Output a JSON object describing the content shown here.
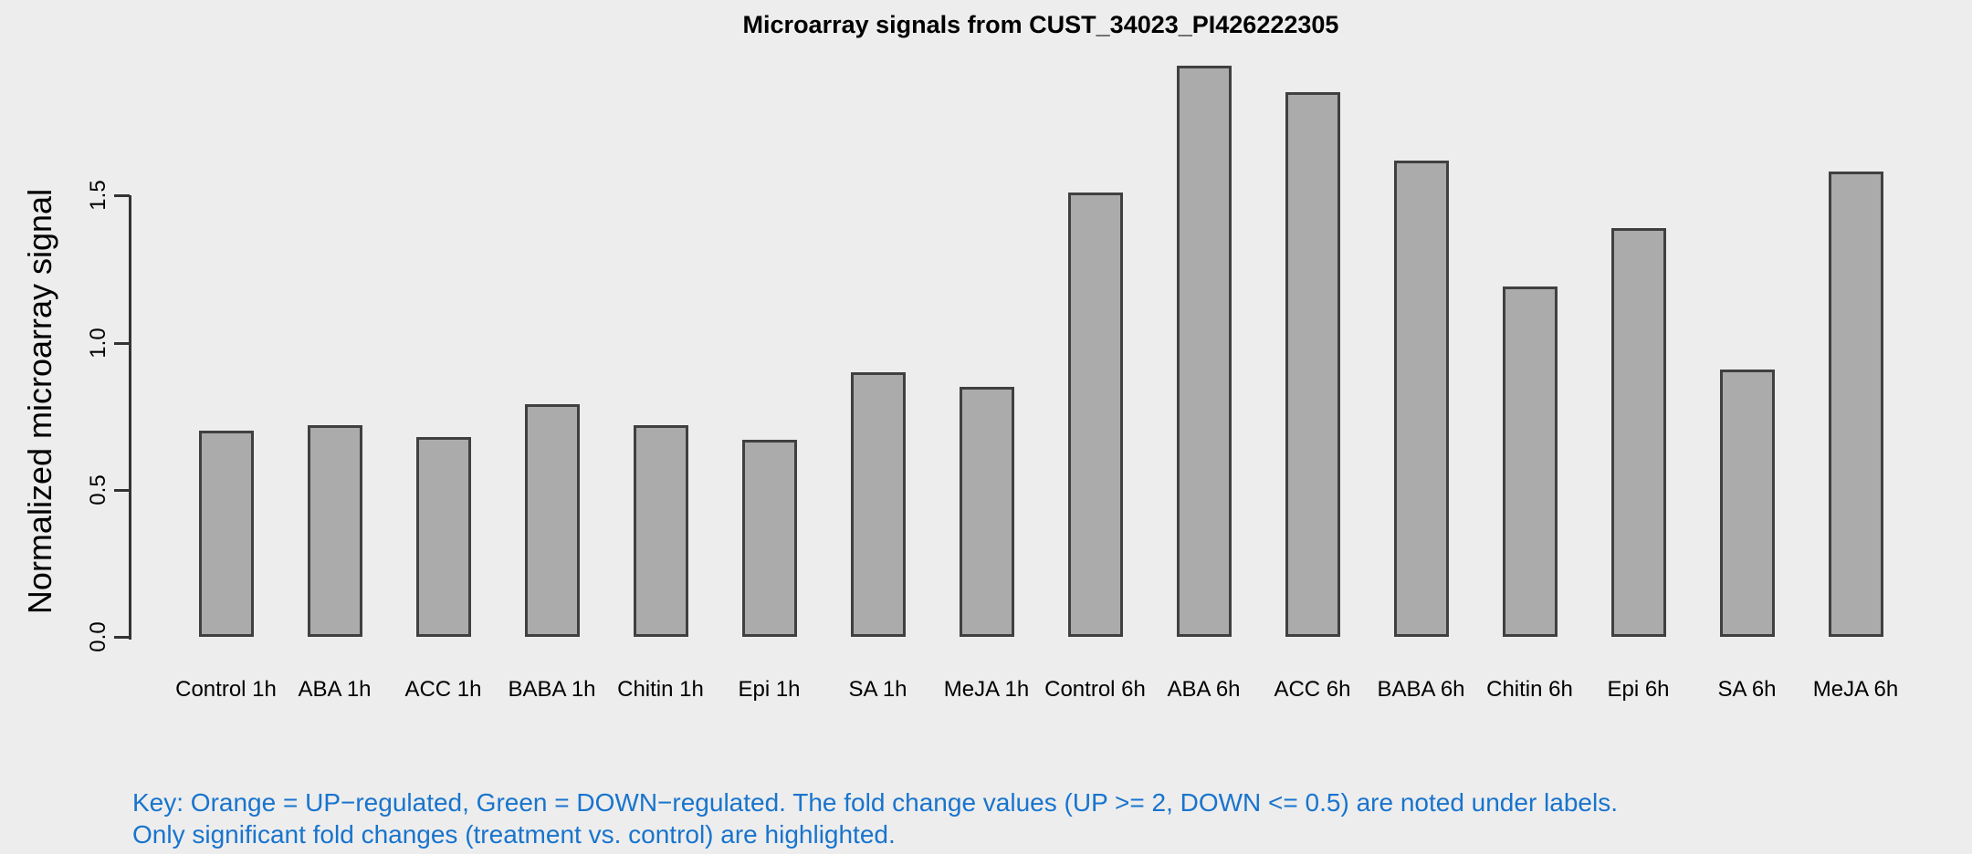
{
  "title": "Microarray signals from CUST_34023_PI426222305",
  "y_axis": {
    "label": "Normalized microarray signal",
    "tick_labels": [
      "0.0",
      "0.5",
      "1.0",
      "1.5"
    ]
  },
  "chart_data": {
    "type": "bar",
    "title": "Microarray signals from CUST_34023_PI426222305",
    "xlabel": "",
    "ylabel": "Normalized microarray signal",
    "categories": [
      "Control 1h",
      "ABA 1h",
      "ACC 1h",
      "BABA 1h",
      "Chitin 1h",
      "Epi 1h",
      "SA 1h",
      "MeJA 1h",
      "Control 6h",
      "ABA 6h",
      "ACC 6h",
      "BABA 6h",
      "Chitin 6h",
      "Epi 6h",
      "SA 6h",
      "MeJA 6h"
    ],
    "values": [
      0.7,
      0.72,
      0.68,
      0.79,
      0.72,
      0.67,
      0.9,
      0.85,
      1.51,
      1.94,
      1.85,
      1.62,
      1.19,
      1.39,
      0.91,
      1.58
    ],
    "yticks": [
      0.0,
      0.5,
      1.0,
      1.5
    ],
    "ylim": [
      0,
      2.0
    ],
    "grid": false,
    "legend_position": "none",
    "bar_fill_color": "#ABABAB",
    "bar_border_color": "#404040"
  },
  "key": {
    "line1": "Key: Orange = UP−regulated, Green = DOWN−regulated. The fold change values (UP >= 2, DOWN <= 0.5) are noted under labels.",
    "line2": "Only significant fold changes (treatment vs. control) are highlighted.",
    "text_color": "#1874CD"
  },
  "colors": {
    "background": "#EDEDED",
    "axis": "#333333",
    "title_text": "#000000"
  }
}
